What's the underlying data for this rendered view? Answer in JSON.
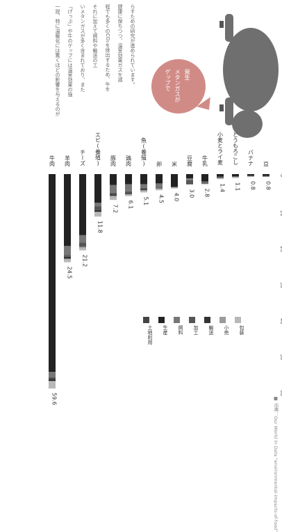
{
  "chart_data": {
    "type": "bar",
    "orientation": "horizontal-stacked",
    "categories": [
      "牛肉",
      "羊肉",
      "チーズ",
      "エビ(養殖)",
      "豚肉",
      "鶏肉",
      "魚(養殖)",
      "卵",
      "米",
      "豆腐",
      "牛乳",
      "小麦とライ麦",
      "とうもろこし",
      "バナナ",
      "豆"
    ],
    "totals": [
      59.6,
      24.5,
      21.2,
      11.8,
      7.2,
      6.1,
      5.1,
      4.5,
      4.0,
      3.0,
      2.8,
      1.4,
      1.1,
      0.8,
      0.8
    ],
    "total_labels": [
      "59.6",
      "24.5",
      "21.2",
      "11.8",
      "7.2",
      "6.1",
      "5.1",
      "4.5",
      "4.0",
      "3.0",
      "2.8",
      "1.4",
      "1.1",
      "0.8",
      "0.8"
    ],
    "series": [
      {
        "name": "土地利用",
        "color": "#444444",
        "values": [
          0,
          0,
          0,
          0,
          0,
          0,
          0,
          0,
          0,
          0,
          0,
          0,
          0,
          0,
          0
        ]
      },
      {
        "name": "生産",
        "color": "#222222",
        "values": [
          55.0,
          20.0,
          17.0,
          8.0,
          3.0,
          2.8,
          2.8,
          2.6,
          3.5,
          1.2,
          2.1,
          0.7,
          0.6,
          0.3,
          0.5
        ]
      },
      {
        "name": "飼料",
        "color": "#777777",
        "values": [
          1.5,
          2.5,
          2.0,
          1.0,
          2.2,
          2.0,
          1.0,
          1.2,
          0.0,
          0.5,
          0.2,
          0.0,
          0.0,
          0.0,
          0.0
        ]
      },
      {
        "name": "加工",
        "color": "#555555",
        "values": [
          0.5,
          0.5,
          1.0,
          1.0,
          0.5,
          0.4,
          0.4,
          0.0,
          0.1,
          0.8,
          0.2,
          0.3,
          0.1,
          0.1,
          0.1
        ]
      },
      {
        "name": "輸送",
        "color": "#333333",
        "values": [
          0.5,
          0.5,
          0.2,
          0.5,
          0.3,
          0.3,
          0.3,
          0.2,
          0.1,
          0.2,
          0.1,
          0.1,
          0.1,
          0.2,
          0.1
        ]
      },
      {
        "name": "小売",
        "color": "#9a9a9a",
        "values": [
          0.2,
          0.2,
          0.3,
          0.2,
          0.3,
          0.3,
          0.2,
          0.0,
          0.1,
          0.2,
          0.2,
          0.1,
          0.1,
          0.0,
          0.0
        ]
      },
      {
        "name": "包装",
        "color": "#b8b8b8",
        "values": [
          1.9,
          0.8,
          0.7,
          1.1,
          0.9,
          0.3,
          0.4,
          0.5,
          0.2,
          0.1,
          0.0,
          0.2,
          0.2,
          0.2,
          0.1
        ]
      }
    ],
    "xlim": [
      0,
      60
    ],
    "ticks": [
      0,
      10,
      20,
      30,
      40,
      50,
      60
    ],
    "unit_label": "kgCO₂",
    "legend_position": "bottom-right",
    "source": "■ 出典：Our World in Data \"environmental-impacts-of-food\""
  },
  "notes": {
    "lines": [
      "一説、特に温暖化には驚くほどの影響を与えるのが",
      "「げっぷ」や牛のゲップには温室効果の強",
      "いメタンガスが多く含まれており、また",
      "それに加えて飼料や輸送の工",
      "程でも多くのCO₂を排出するため、牛を",
      "健康に保ちつつ、温室効果ガスを減",
      "らすための研究が進められています。"
    ]
  },
  "bubble": {
    "lines": [
      "ゲップで",
      "メタンガスが",
      "発生"
    ]
  }
}
